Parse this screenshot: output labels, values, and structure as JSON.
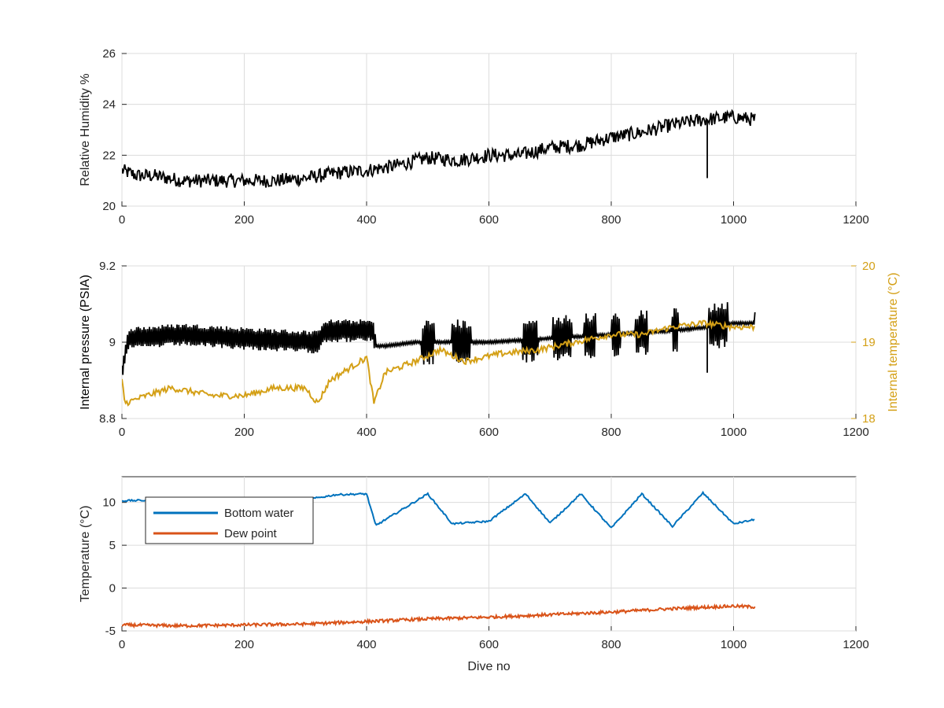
{
  "chart_data": [
    {
      "type": "line",
      "ylabel": "Relative Humidity %",
      "xlabel": "",
      "xlim": [
        0,
        1200
      ],
      "ylim": [
        20,
        26
      ],
      "x_ticks": [
        "0",
        "200",
        "400",
        "600",
        "800",
        "1000",
        "1200"
      ],
      "y_ticks": [
        "20",
        "22",
        "24",
        "26"
      ],
      "grid": true,
      "series": [
        {
          "name": "",
          "color": "#000000",
          "x": [
            0,
            25,
            50,
            100,
            150,
            200,
            250,
            300,
            350,
            400,
            450,
            500,
            550,
            600,
            650,
            700,
            750,
            800,
            850,
            900,
            950,
            1000,
            1035
          ],
          "y": [
            21.4,
            21.2,
            21.2,
            21.0,
            21.0,
            21.0,
            21.0,
            21.1,
            21.3,
            21.4,
            21.6,
            21.9,
            21.8,
            22.0,
            22.0,
            22.3,
            22.4,
            22.7,
            22.9,
            23.2,
            23.4,
            23.5,
            23.4
          ],
          "spikes": [
            {
              "x": 957,
              "y": 21.1
            }
          ]
        }
      ]
    },
    {
      "type": "line",
      "ylabel": "Internal pressure (PSIA)",
      "ylabel_right": "Internal temperature (°C)",
      "xlabel": "",
      "xlim": [
        0,
        1200
      ],
      "ylim": [
        8.8,
        9.2
      ],
      "ylim_right": [
        18,
        20
      ],
      "x_ticks": [
        "0",
        "200",
        "400",
        "600",
        "800",
        "1000",
        "1200"
      ],
      "y_ticks": [
        "8.8",
        "9",
        "9.2"
      ],
      "y_ticks_right": [
        "18",
        "19",
        "20"
      ],
      "grid": true,
      "series": [
        {
          "name": "",
          "axis": "left",
          "color": "#000000",
          "x": [
            0,
            10,
            100,
            200,
            320,
            330,
            410,
            415,
            430,
            480,
            550,
            600,
            700,
            800,
            900,
            960,
            1000,
            1035
          ],
          "y": [
            8.92,
            9.01,
            9.02,
            9.01,
            9.0,
            9.03,
            9.03,
            8.99,
            8.99,
            9.0,
            9.0,
            9.0,
            9.01,
            9.02,
            9.03,
            9.04,
            9.05,
            9.05
          ],
          "spikes": [
            {
              "x": 957,
              "y": 8.92
            }
          ]
        },
        {
          "name": "",
          "axis": "right",
          "color": "#D4A017",
          "x": [
            0,
            5,
            40,
            80,
            150,
            200,
            250,
            300,
            320,
            340,
            380,
            400,
            412,
            430,
            480,
            520,
            560,
            620,
            680,
            740,
            800,
            850,
            900,
            950,
            1000,
            1035
          ],
          "y": [
            18.5,
            18.2,
            18.3,
            18.4,
            18.3,
            18.3,
            18.4,
            18.4,
            18.2,
            18.5,
            18.7,
            18.8,
            18.2,
            18.6,
            18.75,
            18.9,
            18.75,
            18.85,
            18.9,
            19.0,
            19.1,
            19.1,
            19.2,
            19.25,
            19.2,
            19.2
          ]
        }
      ]
    },
    {
      "type": "line",
      "ylabel": "Temperature (°C)",
      "xlabel": "Dive no",
      "xlim": [
        0,
        1200
      ],
      "ylim": [
        -5,
        13
      ],
      "x_ticks": [
        "0",
        "200",
        "400",
        "600",
        "800",
        "1000",
        "1200"
      ],
      "y_ticks": [
        "-5",
        "0",
        "5",
        "10"
      ],
      "grid": true,
      "legend": "top-left",
      "series": [
        {
          "name": "Bottom water",
          "color": "#0072BD",
          "x": [
            0,
            100,
            200,
            300,
            350,
            400,
            415,
            500,
            540,
            600,
            660,
            700,
            750,
            800,
            850,
            900,
            950,
            1000,
            1035
          ],
          "y": [
            10.2,
            10.3,
            10.2,
            10.3,
            10.9,
            11.0,
            7.3,
            11.0,
            7.5,
            7.8,
            11.0,
            7.6,
            11.0,
            7.0,
            11.0,
            7.2,
            11.1,
            7.5,
            8.0
          ]
        },
        {
          "name": "Dew point",
          "color": "#D95319",
          "x": [
            0,
            100,
            200,
            300,
            400,
            500,
            600,
            700,
            800,
            900,
            1000,
            1035
          ],
          "y": [
            -4.3,
            -4.4,
            -4.3,
            -4.2,
            -3.9,
            -3.6,
            -3.4,
            -3.1,
            -2.8,
            -2.4,
            -2.1,
            -2.2
          ]
        }
      ]
    }
  ]
}
